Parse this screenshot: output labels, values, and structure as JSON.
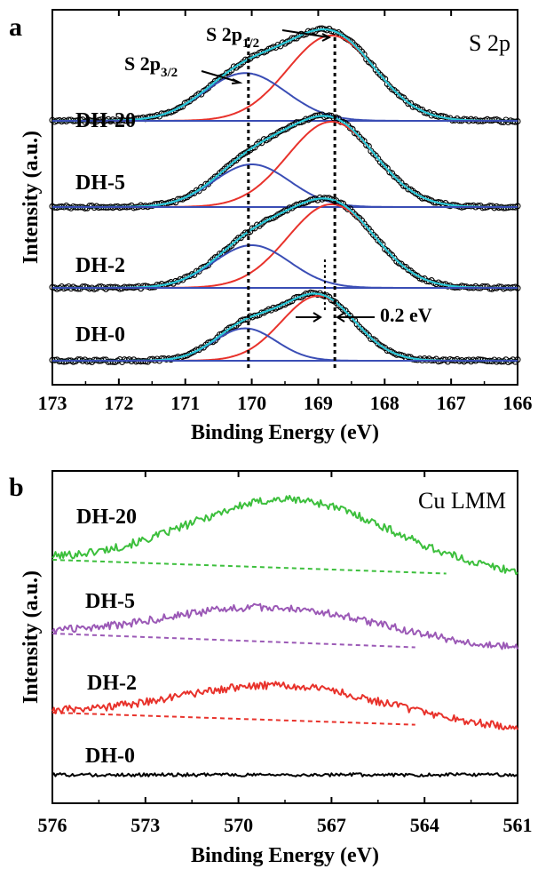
{
  "chart_data": [
    {
      "panel_label": "a",
      "type": "line",
      "title": "S 2p",
      "xlabel": "Binding Energy (eV)",
      "ylabel": "Intensity (a.u.)",
      "xlim": [
        173,
        166
      ],
      "x_reversed": true,
      "xticks": [
        173,
        172,
        171,
        170,
        169,
        168,
        167,
        166
      ],
      "xtick_labels": [
        "173",
        "172",
        "171",
        "170",
        "169",
        "168",
        "167",
        "166"
      ],
      "y_unit_note": "relative intensity, arbitrary units; curves vertically offset",
      "colors": {
        "data_points": "#000000",
        "fitted_envelope": "#28c8d8",
        "background_and_s2p32_component": "#3a4db5",
        "s2p12_component": "#e8322b",
        "reference_lines": "#000000"
      },
      "samples": [
        {
          "name": "DH-20",
          "offset": 0.0,
          "baseline": 0.0,
          "components": [
            {
              "label": "S 2p3/2",
              "center_eV": 170.1,
              "fwhm_eV": 1.45,
              "height": 0.56
            },
            {
              "label": "S 2p1/2",
              "center_eV": 168.8,
              "fwhm_eV": 1.55,
              "height": 1.0
            }
          ]
        },
        {
          "name": "DH-5",
          "offset": 0.0,
          "baseline": 0.0,
          "components": [
            {
              "label": "S 2p3/2",
              "center_eV": 170.0,
              "fwhm_eV": 1.35,
              "height": 0.5
            },
            {
              "label": "S 2p1/2",
              "center_eV": 168.8,
              "fwhm_eV": 1.55,
              "height": 1.0
            }
          ]
        },
        {
          "name": "DH-2",
          "offset": 0.0,
          "baseline": 0.0,
          "components": [
            {
              "label": "S 2p3/2",
              "center_eV": 170.0,
              "fwhm_eV": 1.35,
              "height": 0.5
            },
            {
              "label": "S 2p1/2",
              "center_eV": 168.8,
              "fwhm_eV": 1.55,
              "height": 0.98
            }
          ]
        },
        {
          "name": "DH-0",
          "offset": 0.0,
          "baseline": 0.0,
          "components": [
            {
              "label": "S 2p3/2",
              "center_eV": 170.1,
              "fwhm_eV": 1.1,
              "height": 0.38
            },
            {
              "label": "S 2p1/2",
              "center_eV": 169.0,
              "fwhm_eV": 1.3,
              "height": 0.76
            }
          ]
        }
      ],
      "reference_lines_eV": [
        170.05,
        168.75
      ],
      "dh0_marker_eV": 168.9,
      "annotations": {
        "s2p32_label": "S 2p",
        "s2p32_sub": "3/2",
        "s2p12_label": "S 2p",
        "s2p12_sub": "1/2",
        "shift_label": "0.2 eV"
      }
    },
    {
      "panel_label": "b",
      "type": "line",
      "title": "Cu LMM",
      "xlabel": "Binding Energy (eV)",
      "ylabel": "Intensity (a.u.)",
      "xlim": [
        576,
        561
      ],
      "x_reversed": true,
      "xticks": [
        576,
        573,
        570,
        567,
        564,
        561
      ],
      "xtick_labels": [
        "576",
        "573",
        "570",
        "567",
        "564",
        "561"
      ],
      "y_unit_note": "relative intensity, arbitrary units; curves vertically offset",
      "series": [
        {
          "name": "DH-20",
          "color": "#3cbf3c",
          "offset": 0.0,
          "peak_center_eV": 568.3,
          "peak_width_eV": 3.2,
          "peak_height": 1.25,
          "baseline_left": 0.0,
          "baseline_right": -0.3,
          "noise": 0.15,
          "background_line": [
            {
              "x": 576,
              "y": 0.0
            },
            {
              "x": 563.3,
              "y": -0.25
            }
          ]
        },
        {
          "name": "DH-5",
          "color": "#9b59b6",
          "offset": 0.0,
          "peak_center_eV": 568.8,
          "peak_width_eV": 3.4,
          "peak_height": 0.62,
          "baseline_left": 0.0,
          "baseline_right": -0.3,
          "noise": 0.14,
          "background_line": [
            {
              "x": 576,
              "y": 0.0
            },
            {
              "x": 564.3,
              "y": -0.25
            }
          ]
        },
        {
          "name": "DH-2",
          "color": "#e8322b",
          "offset": 0.0,
          "peak_center_eV": 568.5,
          "peak_width_eV": 3.3,
          "peak_height": 0.65,
          "baseline_left": 0.0,
          "baseline_right": -0.32,
          "noise": 0.14,
          "background_line": [
            {
              "x": 576,
              "y": 0.0
            },
            {
              "x": 564.3,
              "y": -0.22
            }
          ]
        },
        {
          "name": "DH-0",
          "color": "#000000",
          "offset": 0.0,
          "peak_center_eV": 568.5,
          "peak_width_eV": 3.0,
          "peak_height": 0.0,
          "baseline_left": 0.0,
          "baseline_right": 0.0,
          "noise": 0.06,
          "background_line": null
        }
      ]
    }
  ]
}
